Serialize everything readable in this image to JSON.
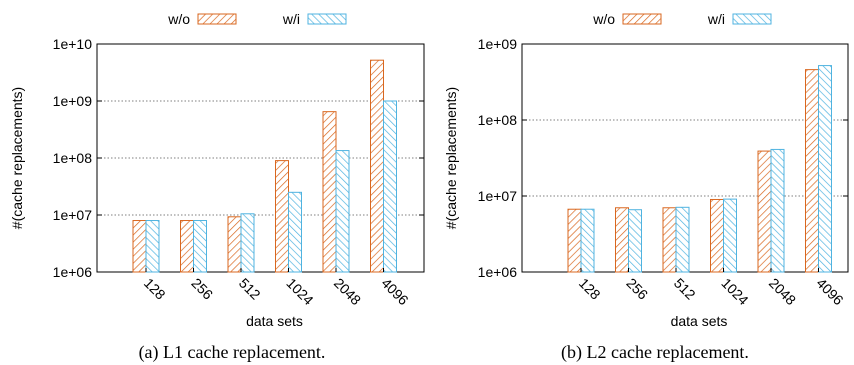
{
  "chart_data": [
    {
      "type": "bar",
      "scale": "log",
      "caption": "(a) L1 cache replacement.",
      "xlabel": "data sets",
      "ylabel": "#(cache replacements)",
      "yticks": [
        "1e+06",
        "1e+07",
        "1e+08",
        "1e+09",
        "1e+10"
      ],
      "ylim": [
        1000000,
        10000000000
      ],
      "grid": "horizontal dotted",
      "legend_position": "top-center",
      "categories": [
        "128",
        "256",
        "512",
        "1024",
        "2048",
        "4096"
      ],
      "series": [
        {
          "name": "w/o",
          "color": "#d9671f",
          "values": [
            8000000,
            8000000,
            9300000,
            90000000,
            650000000,
            5200000000
          ]
        },
        {
          "name": "w/i",
          "color": "#4fb3e0",
          "values": [
            8000000,
            8000000,
            10500000,
            25000000,
            135000000,
            1000000000
          ]
        }
      ]
    },
    {
      "type": "bar",
      "scale": "log",
      "caption": "(b) L2 cache replacement.",
      "xlabel": "data sets",
      "ylabel": "#(cache replacements)",
      "yticks": [
        "1e+06",
        "1e+07",
        "1e+08",
        "1e+09"
      ],
      "ylim": [
        1000000,
        1000000000
      ],
      "grid": "horizontal dotted",
      "legend_position": "top-center",
      "categories": [
        "128",
        "256",
        "512",
        "1024",
        "2048",
        "4096"
      ],
      "series": [
        {
          "name": "w/o",
          "color": "#d9671f",
          "values": [
            6700000,
            7000000,
            7000000,
            9000000,
            39000000,
            460000000
          ]
        },
        {
          "name": "w/i",
          "color": "#4fb3e0",
          "values": [
            6700000,
            6600000,
            7100000,
            9100000,
            41000000,
            520000000
          ]
        }
      ]
    }
  ]
}
